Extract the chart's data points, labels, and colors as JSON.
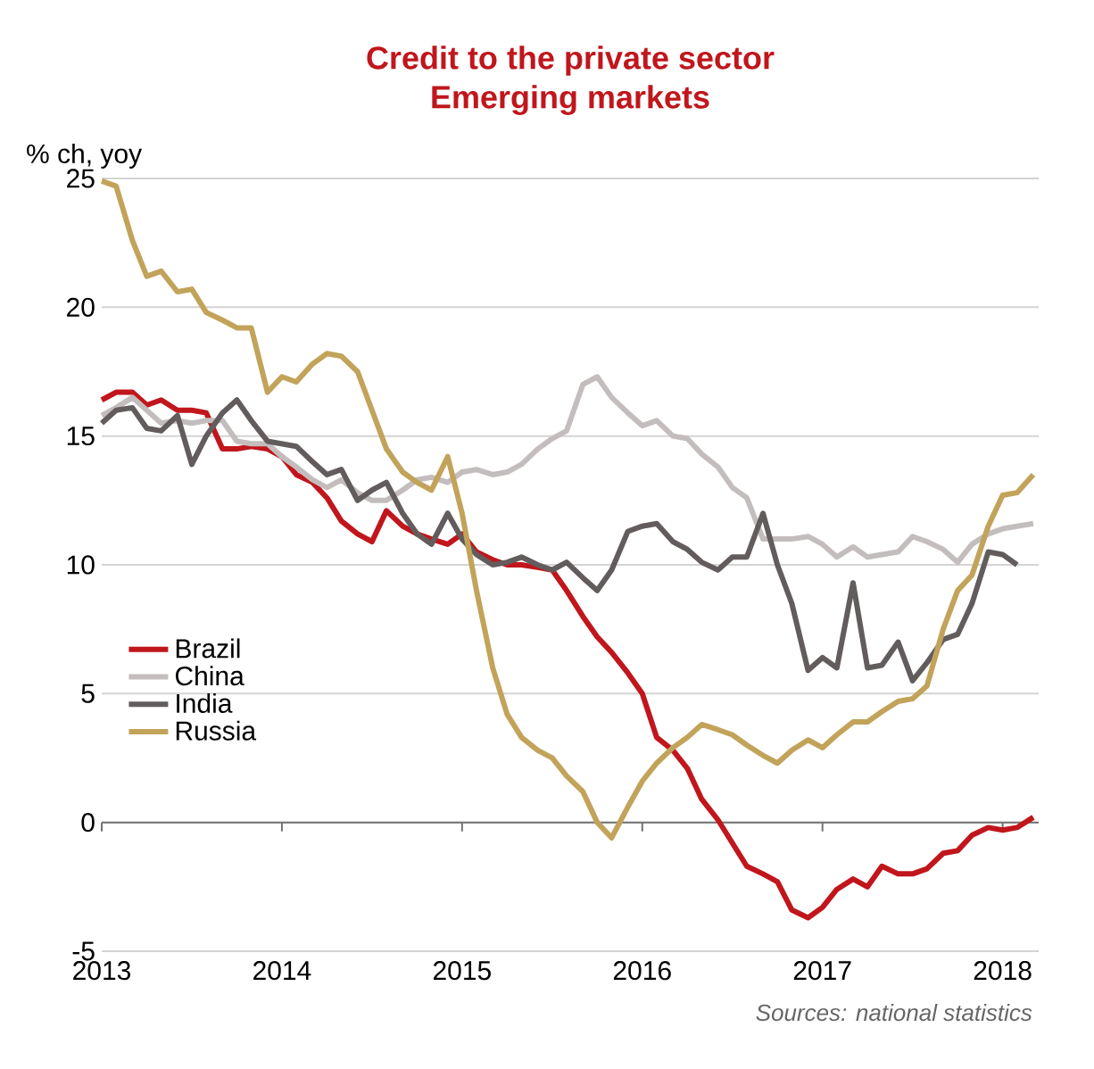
{
  "chart_data": {
    "type": "line",
    "title": "Credit to the private sector",
    "subtitle": "Emerging markets",
    "ylabel": "% ch, yoy",
    "annotations": [
      "Sources: national statistics"
    ],
    "x": [
      2013.0,
      2013.08,
      2013.17,
      2013.25,
      2013.33,
      2013.42,
      2013.5,
      2013.58,
      2013.67,
      2013.75,
      2013.83,
      2013.92,
      2014.0,
      2014.08,
      2014.17,
      2014.25,
      2014.33,
      2014.42,
      2014.5,
      2014.58,
      2014.67,
      2014.75,
      2014.83,
      2014.92,
      2015.0,
      2015.08,
      2015.17,
      2015.25,
      2015.33,
      2015.42,
      2015.5,
      2015.58,
      2015.67,
      2015.75,
      2015.83,
      2015.92,
      2016.0,
      2016.08,
      2016.17,
      2016.25,
      2016.33,
      2016.42,
      2016.5,
      2016.58,
      2016.67,
      2016.75,
      2016.83,
      2016.92,
      2017.0,
      2017.08,
      2017.17,
      2017.25,
      2017.33,
      2017.42,
      2017.5,
      2017.58,
      2017.67,
      2017.75,
      2017.83,
      2017.92,
      2018.0,
      2018.08,
      2018.17
    ],
    "series": [
      {
        "name": "Brazil",
        "color": "#c0161c",
        "values": [
          16.4,
          16.7,
          16.7,
          16.2,
          16.4,
          16.0,
          16.0,
          15.9,
          14.5,
          14.5,
          14.6,
          14.5,
          14.2,
          13.5,
          13.2,
          12.6,
          11.7,
          11.2,
          10.9,
          12.1,
          11.5,
          11.2,
          11.0,
          10.8,
          11.2,
          10.5,
          10.2,
          10.0,
          10.0,
          9.9,
          9.8,
          9.0,
          8.0,
          7.2,
          6.6,
          5.8,
          5.0,
          3.3,
          2.8,
          2.1,
          0.9,
          0.1,
          -0.8,
          -1.7,
          -2.0,
          -2.3,
          -3.4,
          -3.7,
          -3.3,
          -2.6,
          -2.2,
          -2.5,
          -1.7,
          -2.0,
          -2.0,
          -1.8,
          -1.2,
          -1.1,
          -0.5,
          -0.2,
          -0.3,
          -0.2,
          0.2
        ]
      },
      {
        "name": "China",
        "color": "#c3bebd",
        "values": [
          15.8,
          16.1,
          16.5,
          16.0,
          15.5,
          15.6,
          15.5,
          15.6,
          15.6,
          14.8,
          14.7,
          14.7,
          14.2,
          13.8,
          13.3,
          13.0,
          13.3,
          12.8,
          12.5,
          12.5,
          12.9,
          13.3,
          13.4,
          13.2,
          13.6,
          13.7,
          13.5,
          13.6,
          13.9,
          14.5,
          14.9,
          15.2,
          17.0,
          17.3,
          16.5,
          15.9,
          15.4,
          15.6,
          15.0,
          14.9,
          14.3,
          13.8,
          13.0,
          12.6,
          11.0,
          11.0,
          11.0,
          11.1,
          10.8,
          10.3,
          10.7,
          10.3,
          10.4,
          10.5,
          11.1,
          10.9,
          10.6,
          10.1,
          10.8,
          11.2,
          11.4,
          11.5,
          11.6
        ]
      },
      {
        "name": "India",
        "color": "#625c5c",
        "values": [
          15.5,
          16.0,
          16.1,
          15.3,
          15.2,
          15.8,
          13.9,
          15.0,
          15.9,
          16.4,
          15.6,
          14.8,
          14.7,
          14.6,
          14.0,
          13.5,
          13.7,
          12.5,
          12.9,
          13.2,
          12.0,
          11.2,
          10.8,
          12.0,
          11.0,
          10.4,
          10.0,
          10.1,
          10.3,
          10.0,
          9.8,
          10.1,
          9.5,
          9.0,
          9.8,
          11.3,
          11.5,
          11.6,
          10.9,
          10.6,
          10.1,
          9.8,
          10.3,
          10.3,
          12.0,
          10.0,
          8.5,
          5.9,
          6.4,
          6.0,
          9.3,
          6.0,
          6.1,
          7.0,
          5.5,
          6.2,
          7.1,
          7.3,
          8.5,
          10.5,
          10.4,
          10.0,
          null
        ]
      },
      {
        "name": "Russia",
        "color": "#c2a35a",
        "values": [
          24.9,
          24.7,
          22.6,
          21.2,
          21.4,
          20.6,
          20.7,
          19.8,
          19.5,
          19.2,
          19.2,
          16.7,
          17.3,
          17.1,
          17.8,
          18.2,
          18.1,
          17.5,
          16.0,
          14.5,
          13.6,
          13.2,
          12.9,
          14.2,
          12.0,
          9.0,
          6.0,
          4.2,
          3.3,
          2.8,
          2.5,
          1.8,
          1.2,
          0.0,
          -0.6,
          0.6,
          1.6,
          2.3,
          2.9,
          3.3,
          3.8,
          3.6,
          3.4,
          3.0,
          2.6,
          2.3,
          2.8,
          3.2,
          2.9,
          3.4,
          3.9,
          3.9,
          4.3,
          4.7,
          4.8,
          5.3,
          7.5,
          9.0,
          9.6,
          11.5,
          12.7,
          12.8,
          13.5
        ]
      }
    ],
    "xlim": [
      2013,
      2018.2
    ],
    "xticks": [
      2013,
      2014,
      2015,
      2016,
      2017,
      2018
    ],
    "ylim": [
      -5,
      25
    ],
    "yticks": [
      -5,
      0,
      5,
      10,
      15,
      20,
      25
    ],
    "grid": "y",
    "legend": "left"
  }
}
